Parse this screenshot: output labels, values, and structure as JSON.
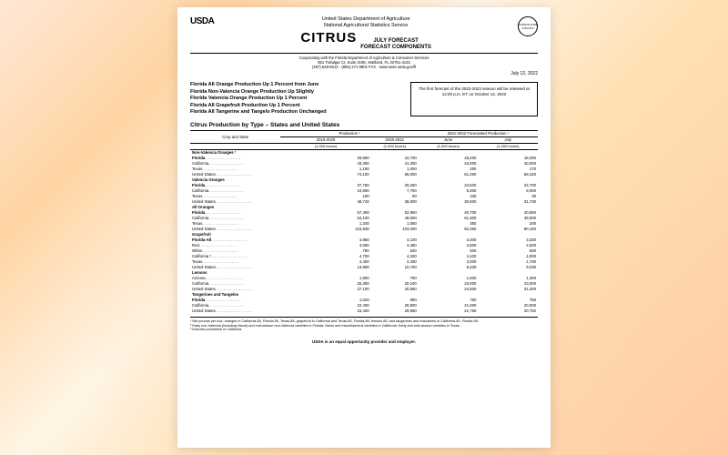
{
  "header": {
    "agency": "USDA",
    "dept": "United States Department of Agriculture",
    "service": "National Agricultural Statistics Service",
    "seal": "AGRICULTURE COUNTS",
    "title": "CITRUS",
    "sub1": "JULY FORECAST",
    "sub2": "FORECAST COMPONENTS",
    "coop1": "Cooperating with the Florida Department of Agriculture & Consumer Services",
    "coop2": "851 Trafalgar Ct, Suite 310E, Maitland, FL 32751-4132",
    "coop3": "(407) 648-6013 · (855) 271-9801 FAX · www.nass.usda.gov/fl",
    "date": "July 12, 2022"
  },
  "headlines": [
    "Florida All Orange Production Up 1 Percent from June",
    "Florida Non-Valencia Orange Production Up Slightly",
    "Florida Valencia Orange Production Up 1 Percent",
    "Florida All Grapefruit Production Up 1 Percent",
    "Florida All Tangerine and Tangelo Production Unchanged"
  ],
  "notice": "The first forecast of the 2022-2023 season will be released at 12:00 p.m. ET on October 12, 2022",
  "table": {
    "title": "Citrus Production by Type – States and United States",
    "h_crop": "Crop and State",
    "h_prod": "Production ¹",
    "h_fore": "2021-2022 Forecasted Production ¹",
    "c1": "2019-2020",
    "c2": "2020-2021",
    "c3": "June",
    "c4": "July",
    "unit": "(1,000 boxes)",
    "sections": [
      {
        "name": "Non-Valencia Oranges ²",
        "rows": [
          [
            "Florida",
            "29,650",
            "22,700",
            "18,200",
            "18,250"
          ],
          [
            "California",
            "43,300",
            "41,300",
            "43,000",
            "40,000"
          ],
          [
            "Texas",
            "1,150",
            "1,000",
            "250",
            "170"
          ],
          [
            "United States",
            "74,100",
            "65,000",
            "61,450",
            "58,420"
          ]
        ]
      },
      {
        "name": "Valencia Oranges",
        "rows": [
          [
            "Florida",
            "37,750",
            "30,250",
            "22,500",
            "22,700"
          ],
          [
            "California",
            "10,800",
            "7,700",
            "8,300",
            "9,000"
          ],
          [
            "Texas",
            "190",
            "50",
            "100",
            "30"
          ],
          [
            "United States",
            "48,740",
            "38,000",
            "30,900",
            "31,730"
          ]
        ]
      },
      {
        "name": "All Oranges",
        "rows": [
          [
            "Florida",
            "67,400",
            "52,950",
            "40,700",
            "40,950"
          ],
          [
            "California",
            "54,100",
            "49,000",
            "51,300",
            "49,000"
          ],
          [
            "Texas",
            "1,340",
            "1,050",
            "350",
            "200"
          ],
          [
            "United States",
            "122,840",
            "103,000",
            "92,350",
            "90,150"
          ]
        ]
      },
      {
        "name": "Grapefruit",
        "rows": [
          [
            "Florida-All",
            "4,850",
            "4,100",
            "3,300",
            "3,330"
          ],
          [
            "  Red",
            "4,060",
            "3,480",
            "2,800",
            "2,830"
          ],
          [
            "  White",
            "790",
            "620",
            "500",
            "500"
          ],
          [
            "California ³",
            "4,700",
            "4,200",
            "4,100",
            "4,000"
          ],
          [
            "Texas",
            "4,400",
            "2,400",
            "2,000",
            "1,700"
          ],
          [
            "United States",
            "13,950",
            "10,700",
            "9,400",
            "9,030"
          ]
        ]
      },
      {
        "name": "Lemons",
        "rows": [
          [
            "Arizona",
            "1,800",
            "750",
            "1,500",
            "1,300"
          ],
          [
            "California",
            "25,300",
            "20,100",
            "23,000",
            "23,000"
          ],
          [
            "United States",
            "27,100",
            "20,850",
            "24,500",
            "24,300"
          ]
        ]
      },
      {
        "name": "Tangerines and Tangelos",
        "rows": [
          [
            "Florida",
            "1,020",
            "890",
            "750",
            "750"
          ],
          [
            "California",
            "22,400",
            "28,800",
            "21,000",
            "20,000"
          ],
          [
            "United States",
            "23,420",
            "29,690",
            "21,750",
            "20,750"
          ]
        ]
      }
    ]
  },
  "footnotes": [
    "¹ Net pounds per box: oranges in California-80, Florida-90, Texas-85; grapefruit in California and Texas-80, Florida-85; lemons-80; and tangerines and mandarins in California-80, Florida-95.",
    "² Early non-Valencia (including Navel) and mid-season non-Valencia varieties in Florida; Navel and miscellaneous varieties in California; Early and mid-season varieties in Texas.",
    "³ Includes pummelos in California."
  ],
  "footer": "USDA is an equal opportunity provider and employer."
}
